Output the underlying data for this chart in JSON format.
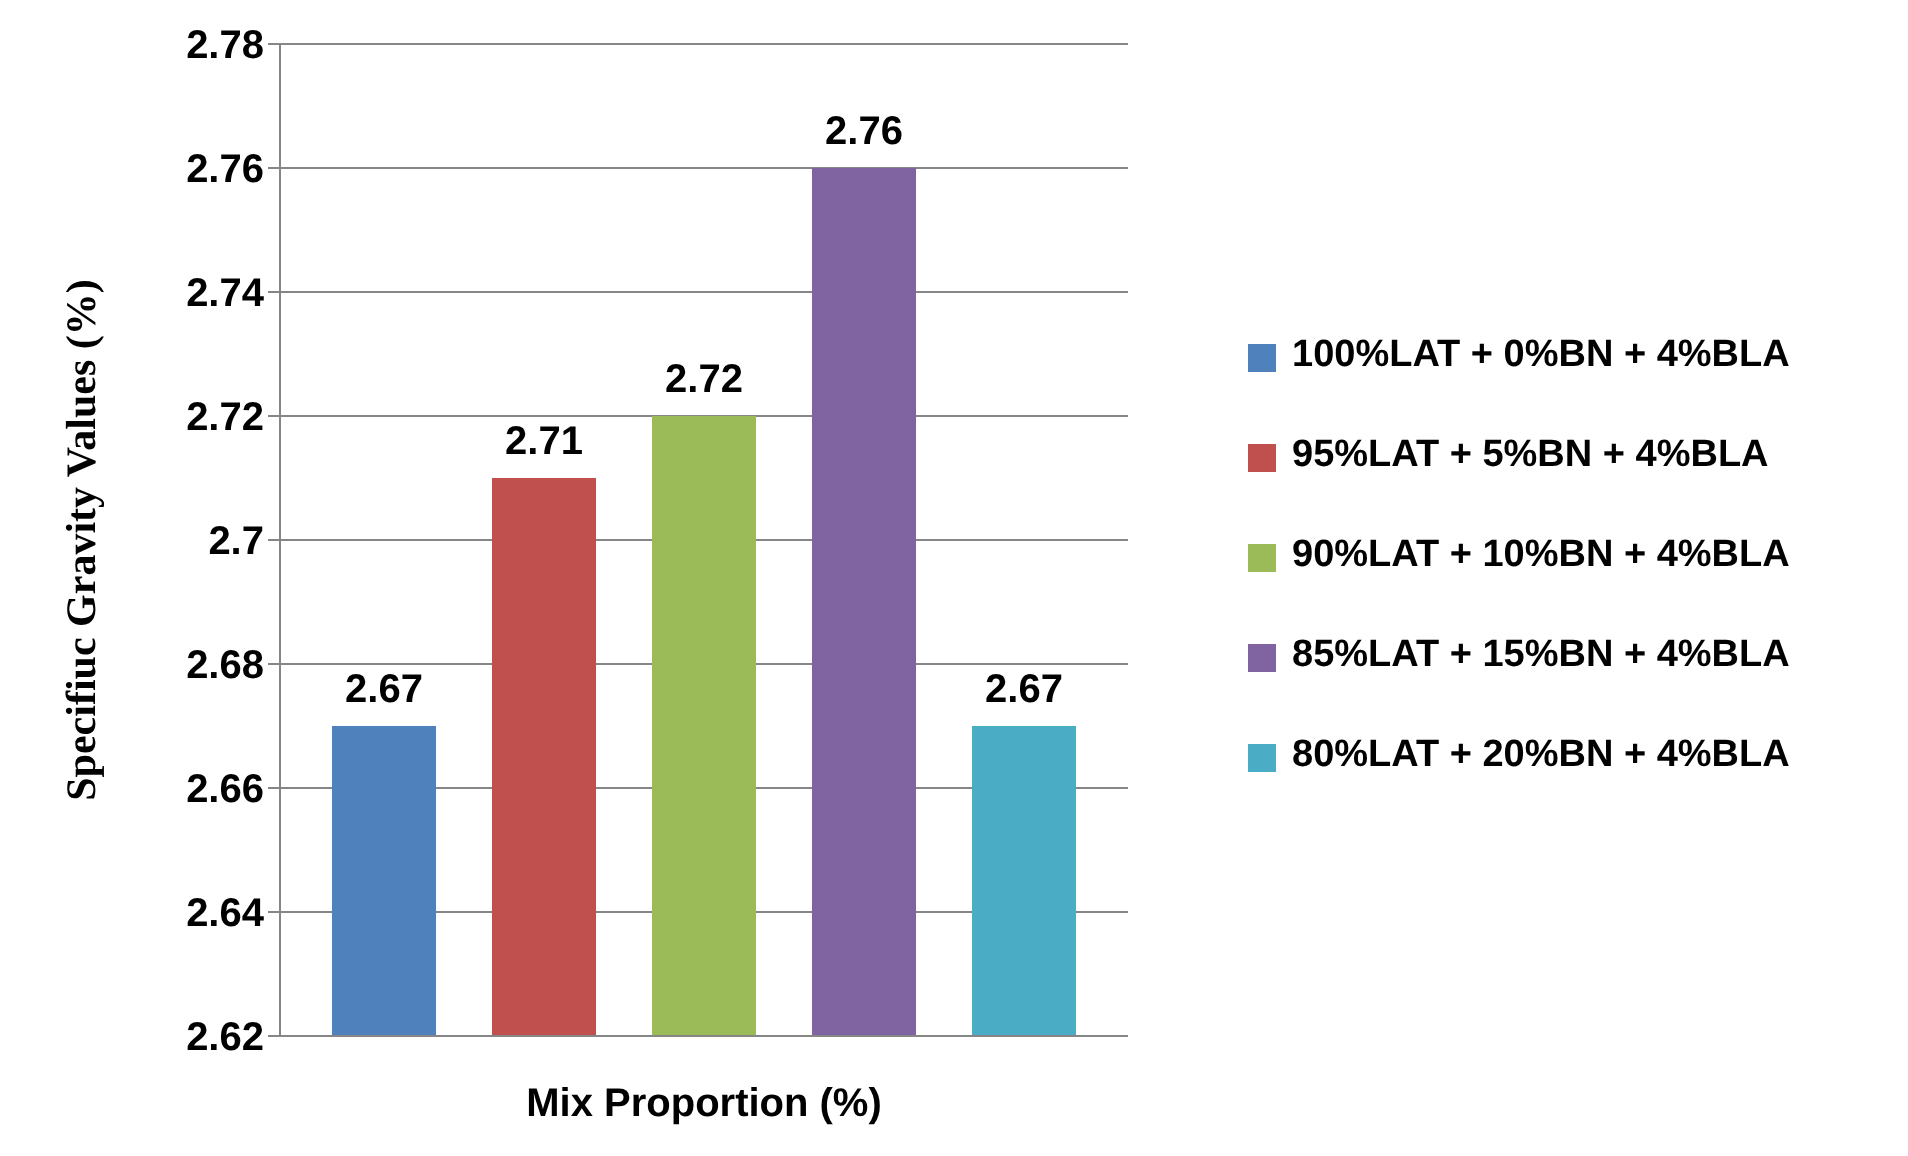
{
  "chart_data": {
    "type": "bar",
    "xlabel": "Mix Proportion (%)",
    "ylabel": "Specifiuc Gravity Values (%)",
    "categories": [
      null
    ],
    "series": [
      {
        "name": "100%LAT + 0%BN + 4%BLA",
        "color": "#4f81bd",
        "values": [
          2.67
        ]
      },
      {
        "name": "95%LAT + 5%BN + 4%BLA",
        "color": "#c0504d",
        "values": [
          2.71
        ]
      },
      {
        "name": "90%LAT + 10%BN + 4%BLA",
        "color": "#9bbb59",
        "values": [
          2.72
        ]
      },
      {
        "name": "85%LAT + 15%BN + 4%BLA",
        "color": "#8064a2",
        "values": [
          2.76
        ]
      },
      {
        "name": "80%LAT + 20%BN + 4%BLA",
        "color": "#4bacc6",
        "values": [
          2.67
        ]
      }
    ],
    "ylim": [
      2.62,
      2.78
    ],
    "yticks": [
      2.62,
      2.64,
      2.66,
      2.68,
      2.7,
      2.72,
      2.74,
      2.76,
      2.78
    ],
    "grid": "y",
    "legend": "right",
    "data_labels": true
  }
}
